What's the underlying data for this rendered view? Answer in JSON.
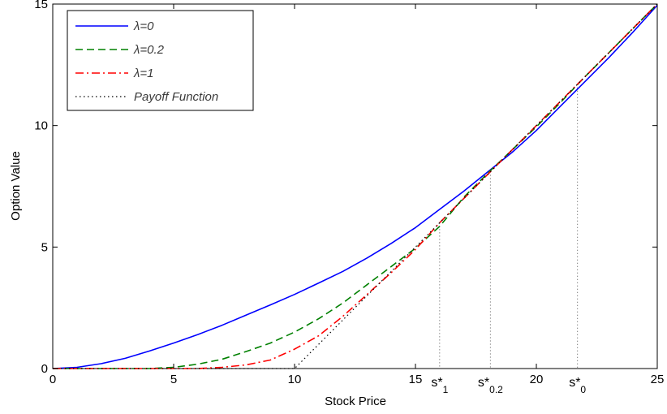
{
  "chart_data": {
    "type": "line",
    "title": "",
    "xlabel": "Stock Price",
    "ylabel": "Option Value",
    "xlim": [
      0,
      25
    ],
    "ylim": [
      0,
      15
    ],
    "xticks": [
      0,
      5,
      10,
      15,
      20,
      25
    ],
    "yticks": [
      0,
      5,
      10,
      15
    ],
    "grid": false,
    "legend_position": "top-left",
    "series": [
      {
        "name": "λ=0",
        "color": "#0000ff",
        "style": "solid",
        "x": [
          0,
          1,
          2,
          3,
          4,
          5,
          6,
          7,
          8,
          9,
          10,
          11,
          12,
          13,
          14,
          15,
          16,
          17,
          18,
          19,
          20,
          21,
          22,
          23,
          24,
          25
        ],
        "y": [
          0,
          0.05,
          0.2,
          0.42,
          0.72,
          1.05,
          1.4,
          1.78,
          2.2,
          2.62,
          3.05,
          3.52,
          4.0,
          4.55,
          5.15,
          5.8,
          6.55,
          7.3,
          8.1,
          8.9,
          9.8,
          10.8,
          11.8,
          12.8,
          13.85,
          14.95
        ]
      },
      {
        "name": "λ=0.2",
        "color": "#008000",
        "style": "dashed",
        "x": [
          0,
          4,
          5,
          6,
          7,
          8,
          9,
          10,
          11,
          12,
          13,
          14,
          15,
          16,
          17,
          18,
          19,
          20,
          21,
          22,
          23,
          24,
          25
        ],
        "y": [
          0,
          0.0,
          0.05,
          0.18,
          0.38,
          0.7,
          1.05,
          1.5,
          2.05,
          2.7,
          3.45,
          4.2,
          4.95,
          5.85,
          7.05,
          8.05,
          9.0,
          9.95,
          10.95,
          12.0,
          13.0,
          14.0,
          15.0
        ]
      },
      {
        "name": "λ=1",
        "color": "#ff0000",
        "style": "dashdot",
        "x": [
          0,
          6,
          7,
          8,
          9,
          10,
          11,
          12,
          13,
          14,
          15,
          16,
          17,
          18,
          19,
          20,
          21,
          22,
          23,
          24,
          25
        ],
        "y": [
          0,
          0.0,
          0.05,
          0.15,
          0.35,
          0.8,
          1.35,
          2.15,
          3.05,
          3.95,
          4.9,
          6.0,
          7.0,
          8.0,
          9.0,
          10.0,
          11.0,
          12.0,
          13.0,
          14.0,
          15.0
        ]
      },
      {
        "name": "Payoff Function",
        "color": "#000000",
        "style": "dotted",
        "x": [
          0,
          10,
          25
        ],
        "y": [
          0,
          0,
          15
        ]
      }
    ],
    "annotations": {
      "s_star": [
        {
          "x": 16.0,
          "main": "s*",
          "sub": "1"
        },
        {
          "x": 18.1,
          "main": "s*",
          "sub": "0.2"
        },
        {
          "x": 21.7,
          "main": "s*",
          "sub": "0"
        }
      ]
    }
  }
}
